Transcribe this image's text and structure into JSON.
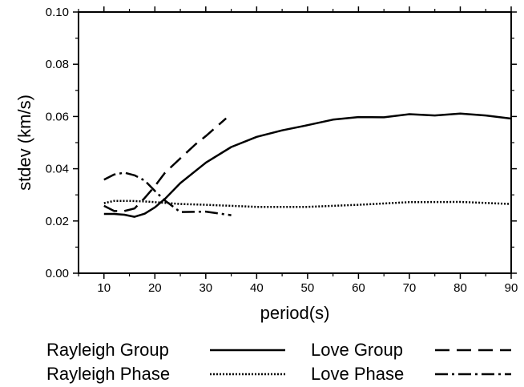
{
  "chart_data": {
    "type": "line",
    "title": "",
    "xlabel": "period(s)",
    "ylabel": "stdev (km/s)",
    "xlim": [
      5,
      90
    ],
    "ylim": [
      0,
      0.1
    ],
    "xticks": [
      10,
      20,
      30,
      40,
      50,
      60,
      70,
      80,
      90
    ],
    "xtick_labels": [
      "10",
      "20",
      "30",
      "40",
      "50",
      "60",
      "70",
      "80",
      "90"
    ],
    "yticks": [
      0,
      0.02,
      0.04,
      0.06,
      0.08,
      0.1
    ],
    "ytick_labels": [
      "0.00",
      "0.02",
      "0.04",
      "0.06",
      "0.08",
      "0.10"
    ],
    "grid": false,
    "legend_position": "bottom",
    "series": [
      {
        "name": "Rayleigh Group",
        "style": "solid",
        "x": [
          10,
          12,
          14,
          16,
          18,
          20,
          22,
          25,
          30,
          35,
          40,
          45,
          50,
          55,
          60,
          65,
          70,
          75,
          80,
          85,
          90
        ],
        "y": [
          0.0227,
          0.0227,
          0.0224,
          0.0216,
          0.0228,
          0.0252,
          0.0285,
          0.0345,
          0.0423,
          0.0483,
          0.0522,
          0.0547,
          0.0567,
          0.0588,
          0.0598,
          0.0597,
          0.0609,
          0.0604,
          0.0611,
          0.0604,
          0.0592
        ]
      },
      {
        "name": "Rayleigh Phase",
        "style": "dotted",
        "x": [
          10,
          12,
          15,
          18,
          20,
          25,
          30,
          35,
          40,
          50,
          60,
          70,
          80,
          90
        ],
        "y": [
          0.0268,
          0.0277,
          0.0277,
          0.0275,
          0.0272,
          0.0265,
          0.0262,
          0.0258,
          0.0254,
          0.0254,
          0.0262,
          0.0272,
          0.0273,
          0.0265
        ]
      },
      {
        "name": "Love Group",
        "style": "dashed",
        "x": [
          10,
          12,
          14,
          16,
          18,
          20,
          22,
          25,
          28,
          30,
          34
        ],
        "y": [
          0.0258,
          0.0238,
          0.0238,
          0.0248,
          0.0288,
          0.0333,
          0.0385,
          0.044,
          0.0494,
          0.0525,
          0.0593
        ]
      },
      {
        "name": "Love Phase",
        "style": "dashdot",
        "x": [
          10,
          12,
          14,
          16,
          18,
          20,
          22,
          25,
          30,
          35
        ],
        "y": [
          0.0358,
          0.0378,
          0.0385,
          0.0375,
          0.0355,
          0.0315,
          0.0278,
          0.0234,
          0.0236,
          0.0222
        ]
      }
    ]
  }
}
